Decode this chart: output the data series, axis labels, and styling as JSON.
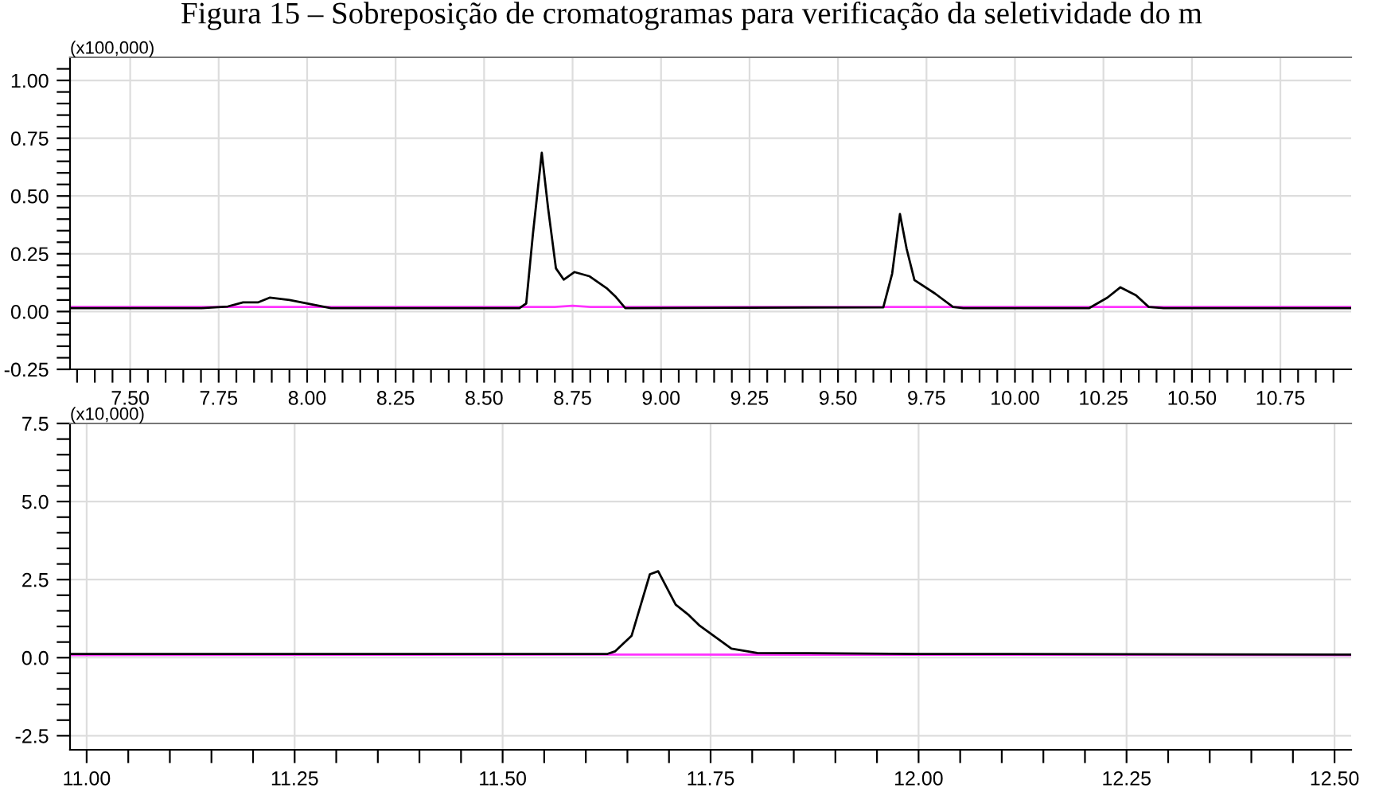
{
  "chart_data": [
    {
      "type": "line",
      "title": "Figura 15 – Sobreposição de cromatogramas para verificação da seletividade do m",
      "ylabel": "(x100,000)",
      "grid": true,
      "xlim": [
        7.33,
        10.95
      ],
      "ylim": [
        -0.25,
        1.1
      ],
      "xticks": [
        {
          "value": 7.35,
          "label": null
        },
        {
          "value": 7.4,
          "label": null
        },
        {
          "value": 7.45,
          "label": null
        },
        {
          "value": 7.5,
          "label": "7.50"
        },
        {
          "value": 7.55,
          "label": null
        },
        {
          "value": 7.6,
          "label": null
        },
        {
          "value": 7.65,
          "label": null
        },
        {
          "value": 7.7,
          "label": null
        },
        {
          "value": 7.75,
          "label": "7.75"
        },
        {
          "value": 7.8,
          "label": null
        },
        {
          "value": 7.85,
          "label": null
        },
        {
          "value": 7.9,
          "label": null
        },
        {
          "value": 7.95,
          "label": null
        },
        {
          "value": 8.0,
          "label": "8.00"
        },
        {
          "value": 8.05,
          "label": null
        },
        {
          "value": 8.1,
          "label": null
        },
        {
          "value": 8.15,
          "label": null
        },
        {
          "value": 8.2,
          "label": null
        },
        {
          "value": 8.25,
          "label": "8.25"
        },
        {
          "value": 8.3,
          "label": null
        },
        {
          "value": 8.35,
          "label": null
        },
        {
          "value": 8.4,
          "label": null
        },
        {
          "value": 8.45,
          "label": null
        },
        {
          "value": 8.5,
          "label": "8.50"
        },
        {
          "value": 8.55,
          "label": null
        },
        {
          "value": 8.6,
          "label": null
        },
        {
          "value": 8.65,
          "label": null
        },
        {
          "value": 8.7,
          "label": null
        },
        {
          "value": 8.75,
          "label": "8.75"
        },
        {
          "value": 8.8,
          "label": null
        },
        {
          "value": 8.85,
          "label": null
        },
        {
          "value": 8.9,
          "label": null
        },
        {
          "value": 8.95,
          "label": null
        },
        {
          "value": 9.0,
          "label": "9.00"
        },
        {
          "value": 9.05,
          "label": null
        },
        {
          "value": 9.1,
          "label": null
        },
        {
          "value": 9.15,
          "label": null
        },
        {
          "value": 9.2,
          "label": null
        },
        {
          "value": 9.25,
          "label": "9.25"
        },
        {
          "value": 9.3,
          "label": null
        },
        {
          "value": 9.35,
          "label": null
        },
        {
          "value": 9.4,
          "label": null
        },
        {
          "value": 9.45,
          "label": null
        },
        {
          "value": 9.5,
          "label": "9.50"
        },
        {
          "value": 9.55,
          "label": null
        },
        {
          "value": 9.6,
          "label": null
        },
        {
          "value": 9.65,
          "label": null
        },
        {
          "value": 9.7,
          "label": null
        },
        {
          "value": 9.75,
          "label": "9.75"
        },
        {
          "value": 9.8,
          "label": null
        },
        {
          "value": 9.85,
          "label": null
        },
        {
          "value": 9.9,
          "label": null
        },
        {
          "value": 9.95,
          "label": null
        },
        {
          "value": 10.0,
          "label": "10.00"
        },
        {
          "value": 10.05,
          "label": null
        },
        {
          "value": 10.1,
          "label": null
        },
        {
          "value": 10.15,
          "label": null
        },
        {
          "value": 10.2,
          "label": null
        },
        {
          "value": 10.25,
          "label": "10.25"
        },
        {
          "value": 10.3,
          "label": null
        },
        {
          "value": 10.35,
          "label": null
        },
        {
          "value": 10.4,
          "label": null
        },
        {
          "value": 10.45,
          "label": null
        },
        {
          "value": 10.5,
          "label": "10.50"
        },
        {
          "value": 10.55,
          "label": null
        },
        {
          "value": 10.6,
          "label": null
        },
        {
          "value": 10.65,
          "label": null
        },
        {
          "value": 10.7,
          "label": null
        },
        {
          "value": 10.75,
          "label": "10.75"
        },
        {
          "value": 10.8,
          "label": null
        },
        {
          "value": 10.85,
          "label": null
        },
        {
          "value": 10.9,
          "label": null
        }
      ],
      "yticks": [
        {
          "value": -0.25,
          "label": "-0.25"
        },
        {
          "value": -0.2,
          "label": null
        },
        {
          "value": -0.15,
          "label": null
        },
        {
          "value": -0.1,
          "label": null
        },
        {
          "value": -0.05,
          "label": null
        },
        {
          "value": 0,
          "label": "0.00"
        },
        {
          "value": 0.05,
          "label": null
        },
        {
          "value": 0.1,
          "label": null
        },
        {
          "value": 0.15,
          "label": null
        },
        {
          "value": 0.2,
          "label": null
        },
        {
          "value": 0.25,
          "label": "0.25"
        },
        {
          "value": 0.3,
          "label": null
        },
        {
          "value": 0.35,
          "label": null
        },
        {
          "value": 0.4,
          "label": null
        },
        {
          "value": 0.45,
          "label": null
        },
        {
          "value": 0.5,
          "label": "0.50"
        },
        {
          "value": 0.55,
          "label": null
        },
        {
          "value": 0.6,
          "label": null
        },
        {
          "value": 0.65,
          "label": null
        },
        {
          "value": 0.7,
          "label": null
        },
        {
          "value": 0.75,
          "label": "0.75"
        },
        {
          "value": 0.8,
          "label": null
        },
        {
          "value": 0.85,
          "label": null
        },
        {
          "value": 0.9,
          "label": null
        },
        {
          "value": 0.95,
          "label": null
        },
        {
          "value": 1.0,
          "label": "1.00"
        },
        {
          "value": 1.05,
          "label": null
        }
      ],
      "series": [
        {
          "color": "#ff33ff",
          "x": [
            7.33,
            8.7,
            8.75,
            8.8,
            10.95
          ],
          "values": [
            0.02,
            0.02,
            0.025,
            0.02,
            0.02
          ]
        },
        {
          "color": "#000000",
          "x": [
            7.33,
            7.703,
            7.776,
            7.819,
            7.862,
            7.894,
            7.95,
            8.007,
            8.067,
            8.6,
            8.619,
            8.638,
            8.663,
            8.681,
            8.703,
            8.725,
            8.755,
            8.797,
            8.848,
            8.87,
            8.899,
            9.628,
            9.653,
            9.675,
            9.694,
            9.716,
            9.774,
            9.825,
            9.854,
            10.21,
            10.261,
            10.298,
            10.342,
            10.378,
            10.42,
            10.95
          ],
          "values": [
            0.015,
            0.015,
            0.022,
            0.04,
            0.04,
            0.06,
            0.05,
            0.033,
            0.015,
            0.015,
            0.035,
            0.336,
            0.687,
            0.445,
            0.187,
            0.138,
            0.171,
            0.153,
            0.099,
            0.067,
            0.015,
            0.018,
            0.164,
            0.422,
            0.271,
            0.136,
            0.078,
            0.02,
            0.015,
            0.015,
            0.06,
            0.105,
            0.07,
            0.02,
            0.015,
            0.015
          ]
        }
      ]
    },
    {
      "type": "line",
      "ylabel": "(x10,000)",
      "grid": true,
      "xlim": [
        10.98,
        12.52
      ],
      "ylim": [
        -2.95,
        7.5
      ],
      "xticks": [
        {
          "value": 11.0,
          "label": "11.00"
        },
        {
          "value": 11.05,
          "label": null
        },
        {
          "value": 11.1,
          "label": null
        },
        {
          "value": 11.15,
          "label": null
        },
        {
          "value": 11.2,
          "label": null
        },
        {
          "value": 11.25,
          "label": "11.25"
        },
        {
          "value": 11.3,
          "label": null
        },
        {
          "value": 11.35,
          "label": null
        },
        {
          "value": 11.4,
          "label": null
        },
        {
          "value": 11.45,
          "label": null
        },
        {
          "value": 11.5,
          "label": "11.50"
        },
        {
          "value": 11.55,
          "label": null
        },
        {
          "value": 11.6,
          "label": null
        },
        {
          "value": 11.65,
          "label": null
        },
        {
          "value": 11.7,
          "label": null
        },
        {
          "value": 11.75,
          "label": "11.75"
        },
        {
          "value": 11.8,
          "label": null
        },
        {
          "value": 11.85,
          "label": null
        },
        {
          "value": 11.9,
          "label": null
        },
        {
          "value": 11.95,
          "label": null
        },
        {
          "value": 12.0,
          "label": "12.00"
        },
        {
          "value": 12.05,
          "label": null
        },
        {
          "value": 12.1,
          "label": null
        },
        {
          "value": 12.15,
          "label": null
        },
        {
          "value": 12.2,
          "label": null
        },
        {
          "value": 12.25,
          "label": "12.25"
        },
        {
          "value": 12.3,
          "label": null
        },
        {
          "value": 12.35,
          "label": null
        },
        {
          "value": 12.4,
          "label": null
        },
        {
          "value": 12.45,
          "label": null
        },
        {
          "value": 12.5,
          "label": "12.50"
        }
      ],
      "yticks": [
        {
          "value": -2.5,
          "label": "-2.5"
        },
        {
          "value": -2.0,
          "label": null
        },
        {
          "value": -1.5,
          "label": null
        },
        {
          "value": -1.0,
          "label": null
        },
        {
          "value": -0.5,
          "label": null
        },
        {
          "value": 0,
          "label": "0.0"
        },
        {
          "value": 0.5,
          "label": null
        },
        {
          "value": 1.0,
          "label": null
        },
        {
          "value": 1.5,
          "label": null
        },
        {
          "value": 2.0,
          "label": null
        },
        {
          "value": 2.5,
          "label": "2.5"
        },
        {
          "value": 3.0,
          "label": null
        },
        {
          "value": 3.5,
          "label": null
        },
        {
          "value": 4.0,
          "label": null
        },
        {
          "value": 4.5,
          "label": null
        },
        {
          "value": 5.0,
          "label": "5.0"
        },
        {
          "value": 5.5,
          "label": null
        },
        {
          "value": 6.0,
          "label": null
        },
        {
          "value": 6.5,
          "label": null
        },
        {
          "value": 7.0,
          "label": null
        },
        {
          "value": 7.5,
          "label": "7.5"
        }
      ],
      "series": [
        {
          "color": "#ff33ff",
          "x": [
            10.98,
            11.7,
            12.52
          ],
          "values": [
            0.08,
            0.1,
            0.08
          ]
        },
        {
          "color": "#000000",
          "x": [
            10.98,
            11.626,
            11.635,
            11.655,
            11.677,
            11.687,
            11.708,
            11.724,
            11.737,
            11.775,
            11.806,
            11.9,
            12.0,
            12.52
          ],
          "values": [
            0.12,
            0.12,
            0.2,
            0.7,
            2.67,
            2.77,
            1.7,
            1.36,
            1.02,
            0.29,
            0.15,
            0.14,
            0.12,
            0.1
          ]
        }
      ]
    }
  ]
}
